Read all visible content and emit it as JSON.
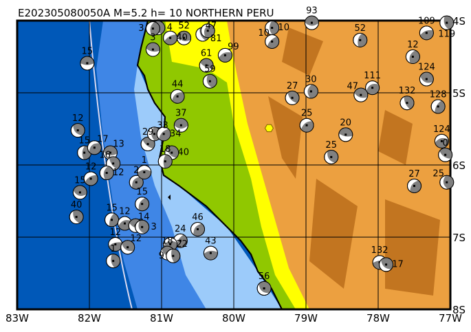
{
  "title": "E202305080050A  M=5.2  h=  10  NORTHERN PERU",
  "map": {
    "lon_range": [
      -83,
      -77
    ],
    "lat_range": [
      -8,
      -4
    ],
    "x_ticks": [
      {
        "v": -83,
        "label": "83W"
      },
      {
        "v": -82,
        "label": "82W"
      },
      {
        "v": -81,
        "label": "81W"
      },
      {
        "v": -80,
        "label": "80W"
      },
      {
        "v": -79,
        "label": "79W"
      },
      {
        "v": -78,
        "label": "78W"
      },
      {
        "v": -77,
        "label": "77W"
      }
    ],
    "y_ticks": [
      {
        "v": -4,
        "label": "4S"
      },
      {
        "v": -5,
        "label": "5S"
      },
      {
        "v": -6,
        "label": "6S"
      },
      {
        "v": -7,
        "label": "7S"
      },
      {
        "v": -8,
        "label": "8S"
      }
    ],
    "colors": {
      "ocean_deep": "#0058b8",
      "ocean_mid": "#3f86e6",
      "ocean_shallow": "#9ccbfa",
      "lowland": "#90c800",
      "plain": "#ffff00",
      "highland": "#eca040",
      "peak": "#b86a18",
      "event": "#ffff00",
      "compression": "#808080"
    },
    "main_event": {
      "lon": -79.51,
      "lat": -5.49
    },
    "mechanisms": [
      {
        "lon": -82.03,
        "lat": -4.59,
        "label": "15"
      },
      {
        "lon": -82.16,
        "lat": -5.52,
        "label": "12"
      },
      {
        "lon": -82.07,
        "lat": -5.83,
        "label": "15"
      },
      {
        "lon": -81.93,
        "lat": -5.76,
        "label": "17"
      },
      {
        "lon": -81.71,
        "lat": -5.83,
        "label": "13"
      },
      {
        "lon": -81.67,
        "lat": -5.98,
        "label": "16"
      },
      {
        "lon": -81.76,
        "lat": -6.11,
        "label": "12"
      },
      {
        "lon": -81.98,
        "lat": -6.19,
        "label": "12"
      },
      {
        "lon": -82.13,
        "lat": -6.38,
        "label": "15"
      },
      {
        "lon": -82.18,
        "lat": -6.72,
        "label": "40"
      },
      {
        "lon": -81.69,
        "lat": -6.76,
        "label": "15"
      },
      {
        "lon": -81.51,
        "lat": -6.81,
        "label": "12"
      },
      {
        "lon": -81.36,
        "lat": -6.84,
        "label": "14"
      },
      {
        "lon": -81.27,
        "lat": -6.86,
        "label": "3"
      },
      {
        "lon": -81.27,
        "lat": -6.54,
        "label": "15"
      },
      {
        "lon": -81.64,
        "lat": -7.1,
        "label": "12"
      },
      {
        "lon": -81.47,
        "lat": -7.14,
        "label": "12"
      },
      {
        "lon": -81.67,
        "lat": -7.33,
        "label": "1"
      },
      {
        "lon": -81.35,
        "lat": -6.24,
        "label": "2"
      },
      {
        "lon": -81.24,
        "lat": -6.1,
        "label": "1"
      },
      {
        "lon": -81.19,
        "lat": -5.71,
        "label": "29"
      },
      {
        "lon": -81.1,
        "lat": -5.57,
        "label": "33"
      },
      {
        "lon": -80.97,
        "lat": -5.57,
        "label": "34"
      },
      {
        "lon": -80.73,
        "lat": -5.45,
        "label": "37"
      },
      {
        "lon": -80.86,
        "lat": -5.83,
        "label": "40"
      },
      {
        "lon": -80.95,
        "lat": -5.95,
        "label": "18"
      },
      {
        "lon": -80.78,
        "lat": -5.05,
        "label": "44"
      },
      {
        "lon": -81.12,
        "lat": -4.4,
        "label": "3"
      },
      {
        "lon": -81.05,
        "lat": -4.1,
        "label": "4"
      },
      {
        "lon": -81.12,
        "lat": -4.11,
        "label": "3"
      },
      {
        "lon": -80.88,
        "lat": -4.24,
        "label": "40"
      },
      {
        "lon": -80.69,
        "lat": -4.24,
        "label": "52"
      },
      {
        "lon": -80.43,
        "lat": -4.19,
        "label": "47"
      },
      {
        "lon": -80.36,
        "lat": -4.14,
        "label": "81"
      },
      {
        "lon": -80.12,
        "lat": -4.48,
        "label": "99"
      },
      {
        "lon": -80.38,
        "lat": -4.62,
        "label": "61"
      },
      {
        "lon": -80.33,
        "lat": -4.84,
        "label": "59"
      },
      {
        "lon": -80.74,
        "lat": -7.05,
        "label": "24"
      },
      {
        "lon": -80.88,
        "lat": -7.1,
        "label": "22"
      },
      {
        "lon": -80.92,
        "lat": -7.22,
        "label": "18"
      },
      {
        "lon": -80.84,
        "lat": -7.26,
        "label": "9"
      },
      {
        "lon": -80.5,
        "lat": -6.89,
        "label": "46"
      },
      {
        "lon": -80.32,
        "lat": -7.22,
        "label": "43"
      },
      {
        "lon": -79.58,
        "lat": -7.71,
        "label": "56"
      },
      {
        "lon": -79.47,
        "lat": -4.1,
        "label": "10"
      },
      {
        "lon": -79.47,
        "lat": -4.29,
        "label": "10"
      },
      {
        "lon": -78.92,
        "lat": -4.03,
        "label": "93"
      },
      {
        "lon": -79.19,
        "lat": -5.07,
        "label": "27"
      },
      {
        "lon": -78.93,
        "lat": -4.98,
        "label": "30"
      },
      {
        "lon": -78.99,
        "lat": -5.45,
        "label": "25"
      },
      {
        "lon": -78.45,
        "lat": -5.58,
        "label": "20"
      },
      {
        "lon": -78.65,
        "lat": -5.89,
        "label": "25"
      },
      {
        "lon": -78.25,
        "lat": -4.27,
        "label": "52"
      },
      {
        "lon": -78.08,
        "lat": -4.93,
        "label": "111"
      },
      {
        "lon": -78.24,
        "lat": -5.03,
        "label": "47"
      },
      {
        "lon": -77.6,
        "lat": -5.14,
        "label": "132"
      },
      {
        "lon": -77.52,
        "lat": -4.5,
        "label": "12"
      },
      {
        "lon": -77.33,
        "lat": -4.17,
        "label": "109"
      },
      {
        "lon": -77.33,
        "lat": -4.81,
        "label": "124"
      },
      {
        "lon": -77.05,
        "lat": -4.03,
        "label": "119"
      },
      {
        "lon": -77.17,
        "lat": -5.19,
        "label": "128"
      },
      {
        "lon": -77.12,
        "lat": -5.67,
        "label": "124"
      },
      {
        "lon": -77.07,
        "lat": -5.86,
        "label": "0"
      },
      {
        "lon": -77.05,
        "lat": -6.24,
        "label": "25"
      },
      {
        "lon": -77.5,
        "lat": -6.29,
        "label": "27"
      },
      {
        "lon": -77.98,
        "lat": -7.35,
        "label": "132"
      },
      {
        "lon": -77.89,
        "lat": -7.38,
        "label": "17"
      }
    ]
  }
}
